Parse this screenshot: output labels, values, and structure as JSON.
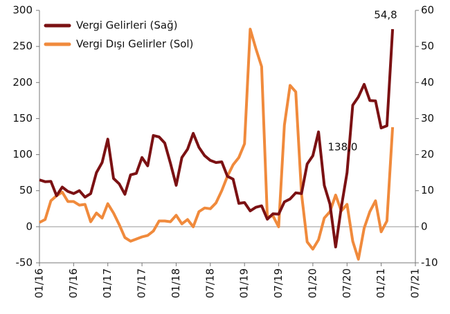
{
  "chart_data": {
    "type": "line",
    "categories": [
      "01/16",
      null,
      null,
      null,
      null,
      null,
      "07/16",
      null,
      null,
      null,
      null,
      null,
      "01/17",
      null,
      null,
      null,
      null,
      null,
      "07/17",
      null,
      null,
      null,
      null,
      null,
      "01/18",
      null,
      null,
      null,
      null,
      null,
      "07/18",
      null,
      null,
      null,
      null,
      null,
      "01/19",
      null,
      null,
      null,
      null,
      null,
      "07/19",
      null,
      null,
      null,
      null,
      null,
      "01/20",
      null,
      null,
      null,
      null,
      null,
      "07/20",
      null,
      null,
      null,
      null,
      null,
      "01/21",
      null,
      null,
      null,
      null,
      null,
      "07/21"
    ],
    "series": [
      {
        "name": "Vergi Gelirleri (Sağ)",
        "color": "#7b1113",
        "axis": "y2",
        "values": [
          13,
          12.5,
          12.6,
          8.6,
          11,
          9.8,
          9.2,
          10,
          8.2,
          9.2,
          15,
          17.8,
          24.3,
          13.4,
          11.9,
          9,
          14.4,
          14.8,
          19.2,
          16.9,
          25.3,
          24.9,
          23.2,
          17.6,
          11.5,
          19.2,
          21.5,
          25.9,
          22,
          19.7,
          18.4,
          17.8,
          18,
          14,
          13.2,
          6.5,
          6.7,
          4.4,
          5.4,
          5.8,
          2.1,
          3.6,
          3.5,
          6.9,
          7.7,
          9.4,
          9.2,
          17.4,
          19.7,
          26.3,
          11.5,
          6.3,
          -5.6,
          5.4,
          15,
          33.7,
          36,
          39.5,
          35,
          34.9,
          27.4,
          28,
          54.8,
          null,
          null,
          null,
          null
        ]
      },
      {
        "name": "Vergi Dışı Gelirler (Sol)",
        "color": "#f08a3c",
        "values": [
          6,
          10,
          36,
          43,
          48,
          35,
          35,
          30,
          31,
          7,
          19,
          12,
          32,
          19,
          3,
          -15,
          -20,
          -17,
          -14,
          -12,
          -6,
          8,
          8,
          7,
          16,
          4,
          10,
          0,
          21,
          26,
          25,
          33,
          50,
          70,
          86,
          96,
          115,
          274,
          247,
          222,
          14,
          15,
          0,
          141,
          196,
          187,
          46,
          -21,
          -31,
          -18,
          12,
          21,
          44,
          22,
          31,
          -20,
          -45,
          -2,
          21,
          36,
          -7,
          8,
          138,
          null,
          null,
          null,
          null
        ]
      }
    ],
    "annotations": [
      "54,8",
      "138,0"
    ],
    "ylim": [
      -50,
      300
    ],
    "yticks": [
      -50,
      0,
      50,
      100,
      150,
      200,
      250,
      300
    ],
    "y2lim": [
      -10,
      60
    ],
    "y2ticks": [
      -10,
      0,
      10,
      20,
      30,
      40,
      50,
      60
    ],
    "legend": "upper left",
    "grid": false
  }
}
